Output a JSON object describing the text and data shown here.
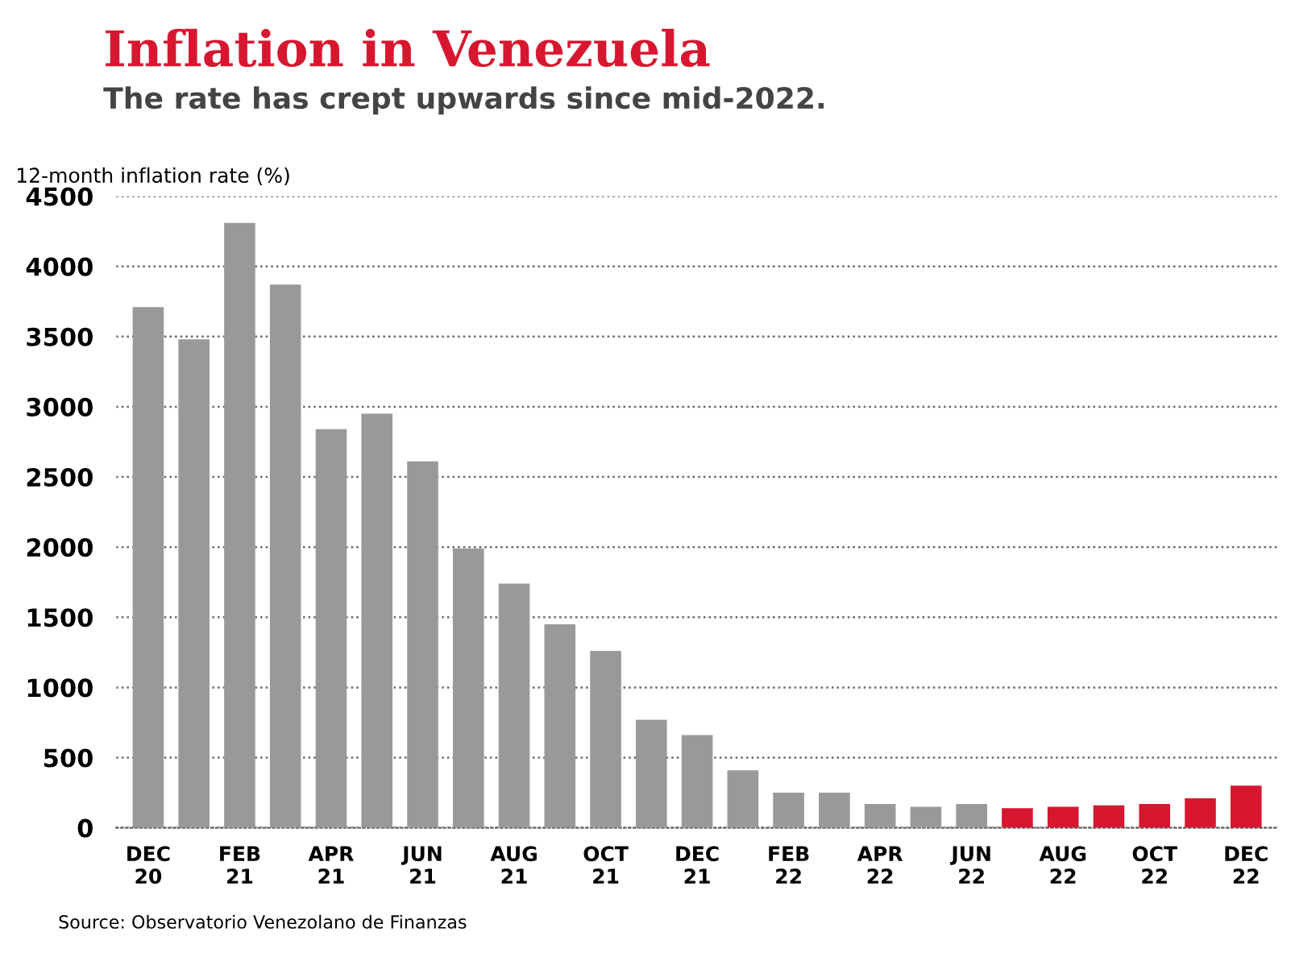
{
  "chart_data": {
    "type": "bar",
    "title": "Inflation in Venezuela",
    "subtitle": "The rate has crept upwards since mid-2022.",
    "ylabel": "12-month inflation rate (%)",
    "categories": [
      "DEC\n20",
      null,
      "FEB\n21",
      null,
      "APR\n21",
      null,
      "JUN\n21",
      null,
      "AUG\n21",
      null,
      "OCT\n21",
      null,
      "DEC\n21",
      null,
      "FEB\n22",
      null,
      "APR\n22",
      null,
      "JUN\n22",
      null,
      "AUG\n22",
      null,
      "OCT\n22",
      null,
      "DEC\n22"
    ],
    "values": [
      3710,
      3480,
      4310,
      3870,
      2840,
      2950,
      2610,
      1990,
      1740,
      1450,
      1260,
      770,
      660,
      410,
      250,
      250,
      170,
      150,
      170,
      140,
      150,
      160,
      170,
      210,
      300
    ],
    "colors": [
      "#999999",
      "#999999",
      "#999999",
      "#999999",
      "#999999",
      "#999999",
      "#999999",
      "#999999",
      "#999999",
      "#999999",
      "#999999",
      "#999999",
      "#999999",
      "#999999",
      "#999999",
      "#999999",
      "#999999",
      "#999999",
      "#999999",
      "#d7172f",
      "#d7172f",
      "#d7172f",
      "#d7172f",
      "#d7172f",
      "#d7172f"
    ],
    "ylim": [
      0,
      4500
    ],
    "yticks": [
      0,
      500,
      1000,
      1500,
      2000,
      2500,
      3000,
      3500,
      4000,
      4500
    ],
    "grid": "y",
    "annotations": [
      "Source: Observatorio Venezolano de Finanzas"
    ]
  }
}
